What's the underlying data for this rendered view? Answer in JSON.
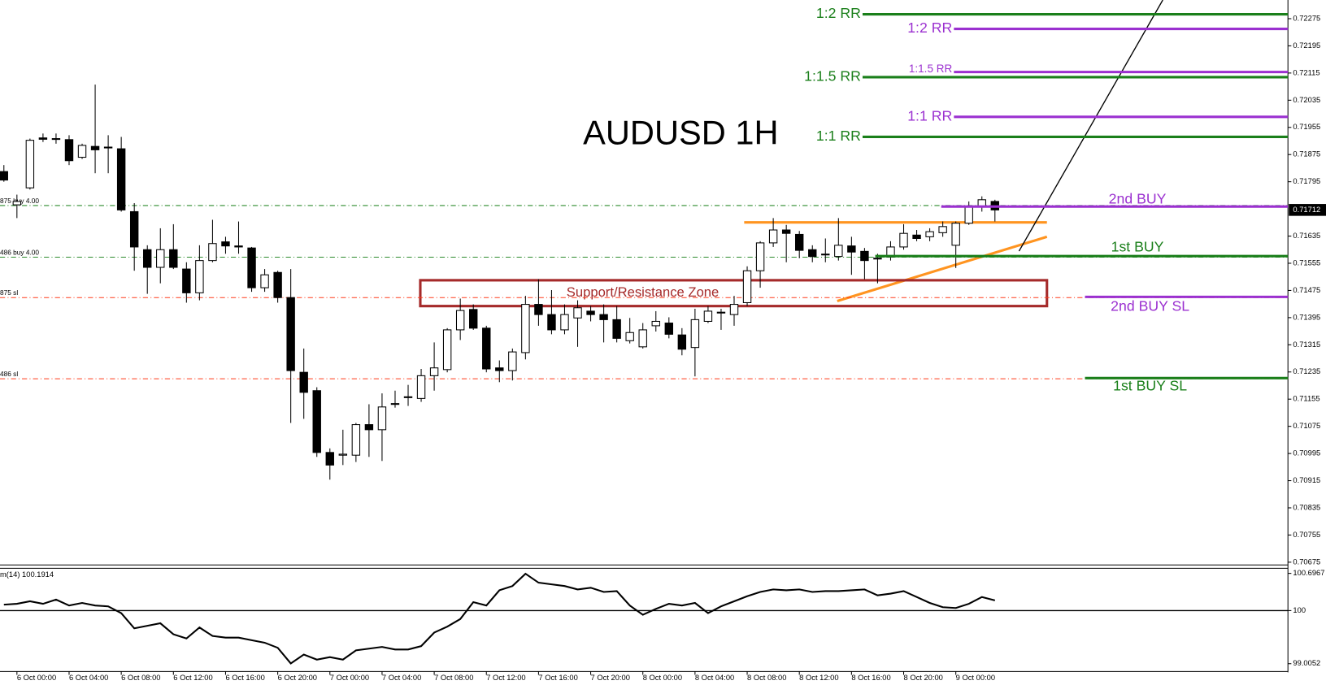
{
  "chart_data": [
    {
      "type": "candlestick",
      "title": "AUDUSD 1H",
      "categories": [
        null,
        "6 Oct 00:00",
        null,
        null,
        null,
        "6 Oct 04:00",
        null,
        null,
        null,
        "6 Oct 08:00",
        null,
        null,
        null,
        "6 Oct 12:00",
        null,
        null,
        null,
        "6 Oct 16:00",
        null,
        null,
        null,
        "6 Oct 20:00",
        null,
        null,
        null,
        "7 Oct 00:00",
        null,
        null,
        null,
        "7 Oct 04:00",
        null,
        null,
        null,
        "7 Oct 08:00",
        null,
        null,
        null,
        "7 Oct 12:00",
        null,
        null,
        null,
        "7 Oct 16:00",
        null,
        null,
        null,
        "7 Oct 20:00",
        null,
        null,
        null,
        "8 Oct 00:00",
        null,
        null,
        null,
        "8 Oct 04:00",
        null,
        null,
        null,
        "8 Oct 08:00",
        null,
        null,
        null,
        "8 Oct 12:00",
        null,
        null,
        null,
        "8 Oct 16:00",
        null,
        null,
        null,
        "8 Oct 20:00",
        null,
        null,
        null,
        "9 Oct 00:00",
        null,
        null,
        null
      ],
      "open": [
        0.71825,
        0.71727,
        0.71777,
        0.71924,
        0.71922,
        0.71919,
        0.71867,
        0.71899,
        0.71897,
        0.71892,
        0.71707,
        0.71595,
        0.71543,
        0.71595,
        0.71538,
        0.71468,
        0.71563,
        0.71618,
        0.71606,
        0.716,
        0.71483,
        0.71528,
        0.71454,
        0.71234,
        0.7118,
        0.70998,
        0.7099,
        0.7099,
        0.7108,
        0.71065,
        0.7114,
        0.7116,
        0.71157,
        0.71224,
        0.71242,
        0.71359,
        0.71419,
        0.71364,
        0.71247,
        0.71239,
        0.71292,
        0.71434,
        0.71404,
        0.71359,
        0.71394,
        0.71414,
        0.71404,
        0.71389,
        0.71327,
        0.71309,
        0.71371,
        0.71379,
        0.71344,
        0.71307,
        0.71384,
        0.71409,
        0.71404,
        0.71439,
        0.71533,
        0.71615,
        0.71653,
        0.7164,
        0.71595,
        0.7158,
        0.71575,
        0.71606,
        0.7159,
        0.71568,
        0.71573,
        0.71603,
        0.71638,
        0.71633,
        0.71645,
        0.71608,
        0.71673,
        0.71722,
        0.71737
      ],
      "high": [
        0.71844,
        0.71757,
        0.71922,
        0.71937,
        0.71937,
        0.71932,
        0.71907,
        0.72081,
        0.71932,
        0.71927,
        0.71732,
        0.71608,
        0.71658,
        0.7167,
        0.71558,
        0.71608,
        0.71683,
        0.71633,
        0.71678,
        0.71603,
        0.71538,
        0.71533,
        0.71538,
        0.71304,
        0.7119,
        0.7101,
        0.71065,
        0.71085,
        0.7114,
        0.71172,
        0.7118,
        0.71197,
        0.71244,
        0.71322,
        0.71364,
        0.71451,
        0.71434,
        0.71371,
        0.71269,
        0.71304,
        0.71459,
        0.71508,
        0.71476,
        0.71434,
        0.71446,
        0.71429,
        0.71434,
        0.71429,
        0.71394,
        0.71379,
        0.71414,
        0.71396,
        0.71364,
        0.71421,
        0.71429,
        0.71421,
        0.71459,
        0.71546,
        0.7162,
        0.71688,
        0.71668,
        0.7165,
        0.71608,
        0.71628,
        0.71688,
        0.71633,
        0.716,
        0.71583,
        0.7162,
        0.7167,
        0.71653,
        0.71658,
        0.71678,
        0.71678,
        0.71737,
        0.71752,
        0.71742
      ],
      "low": [
        0.71795,
        0.71688,
        0.71772,
        0.71912,
        0.71907,
        0.71844,
        0.71862,
        0.7182,
        0.7182,
        0.71707,
        0.71533,
        0.71465,
        0.71496,
        0.71538,
        0.71439,
        0.71446,
        0.71558,
        0.71583,
        0.71583,
        0.71471,
        0.71471,
        0.71439,
        0.71085,
        0.71097,
        0.70985,
        0.70918,
        0.70961,
        0.7097,
        0.70985,
        0.70973,
        0.7113,
        0.71135,
        0.71147,
        0.7118,
        0.71234,
        0.71329,
        0.71359,
        0.71234,
        0.71205,
        0.7121,
        0.71272,
        0.71371,
        0.71346,
        0.71346,
        0.71309,
        0.71384,
        0.71322,
        0.71322,
        0.71319,
        0.71304,
        0.71354,
        0.71334,
        0.71284,
        0.71222,
        0.71379,
        0.71359,
        0.71371,
        0.71429,
        0.71483,
        0.71603,
        0.71558,
        0.7157,
        0.71558,
        0.71558,
        0.71563,
        0.71521,
        0.71508,
        0.71496,
        0.71563,
        0.71595,
        0.7162,
        0.7162,
        0.71633,
        0.71541,
        0.71668,
        0.71707,
        0.71678
      ],
      "close": [
        0.718,
        0.71737,
        0.71917,
        0.7192,
        0.7192,
        0.71857,
        0.71902,
        0.71889,
        0.71895,
        0.71712,
        0.71603,
        0.71543,
        0.71595,
        0.71543,
        0.71468,
        0.71563,
        0.71613,
        0.71606,
        0.71603,
        0.71483,
        0.71521,
        0.71454,
        0.71239,
        0.71175,
        0.70998,
        0.70961,
        0.70993,
        0.7108,
        0.71065,
        0.71132,
        0.71142,
        0.71162,
        0.71224,
        0.71247,
        0.71359,
        0.71416,
        0.71364,
        0.71244,
        0.71239,
        0.71294,
        0.71434,
        0.71404,
        0.71359,
        0.71404,
        0.71424,
        0.71404,
        0.71389,
        0.71334,
        0.71351,
        0.71359,
        0.71384,
        0.71346,
        0.71302,
        0.71389,
        0.71414,
        0.71411,
        0.71434,
        0.71533,
        0.71615,
        0.71653,
        0.71643,
        0.71593,
        0.71575,
        0.71582,
        0.71608,
        0.71588,
        0.71563,
        0.7157,
        0.71603,
        0.71643,
        0.71628,
        0.71648,
        0.71663,
        0.71673,
        0.71722,
        0.71742,
        0.71712
      ],
      "ylim": [
        0.70667,
        0.7233
      ],
      "yticks": [
        0.72275,
        0.72195,
        0.72115,
        0.72035,
        0.71955,
        0.71875,
        0.71795,
        0.71635,
        0.71555,
        0.71475,
        0.71395,
        0.71315,
        0.71235,
        0.71155,
        0.71075,
        0.70995,
        0.70915,
        0.70835,
        0.70755,
        0.70675
      ],
      "current_price": 0.71712,
      "levels": [
        {
          "label": "1:2 RR",
          "value": 0.72288,
          "color": "#1a7f1a"
        },
        {
          "label": "1:2 RR",
          "value": 0.72245,
          "color": "#9b30d0"
        },
        {
          "label": "1:1.5 RR",
          "value": 0.72118,
          "color": "#9b30d0"
        },
        {
          "label": "1:1.5 RR",
          "value": 0.72103,
          "color": "#1a7f1a"
        },
        {
          "label": "1:1 RR",
          "value": 0.71986,
          "color": "#9b30d0"
        },
        {
          "label": "1:1 RR",
          "value": 0.71927,
          "color": "#1a7f1a"
        },
        {
          "label": "2nd BUY",
          "value": 0.71722,
          "color": "#9b30d0"
        },
        {
          "label": "1st BUY",
          "value": 0.71576,
          "color": "#1a7f1a"
        },
        {
          "label": "2nd BUY SL",
          "value": 0.71456,
          "color": "#9b30d0"
        },
        {
          "label": "1st BUY SL",
          "value": 0.71217,
          "color": "#1a7f1a"
        }
      ],
      "orders": [
        {
          "label": "875 buy 4.00",
          "value": 0.71725,
          "color": "#2e8b2e"
        },
        {
          "label": "486 buy 4.00",
          "value": 0.71573,
          "color": "#2e8b2e"
        },
        {
          "label": "875 sl",
          "value": 0.71454,
          "color": "#ff3b1a"
        },
        {
          "label": "486 sl",
          "value": 0.71215,
          "color": "#ff3b1a"
        }
      ],
      "zone": {
        "label": "Support/Resistance Zone",
        "top": 0.71505,
        "bottom": 0.71429,
        "color": "#a52a2a"
      }
    },
    {
      "type": "line",
      "label": "m(14) 100.1914",
      "color": "#000000",
      "values": [
        100.111,
        100.127,
        100.174,
        100.127,
        100.206,
        100.095,
        100.143,
        100.095,
        100.079,
        99.952,
        99.667,
        99.715,
        99.762,
        99.556,
        99.477,
        99.683,
        99.525,
        99.493,
        99.493,
        99.445,
        99.398,
        99.303,
        99.01,
        99.176,
        99.081,
        99.128,
        99.081,
        99.255,
        99.287,
        99.319,
        99.271,
        99.271,
        99.334,
        99.588,
        99.699,
        99.842,
        100.158,
        100.095,
        100.38,
        100.46,
        100.69,
        100.523,
        100.491,
        100.46,
        100.396,
        100.428,
        100.349,
        100.365,
        100.095,
        99.921,
        100.032,
        100.127,
        100.095,
        100.143,
        99.952,
        100.079,
        100.174,
        100.269,
        100.349,
        100.396,
        100.38,
        100.396,
        100.349,
        100.365,
        100.365,
        100.38,
        100.396,
        100.285,
        100.317,
        100.365,
        100.254,
        100.143,
        100.063,
        100.048,
        100.127,
        100.254,
        100.1914
      ],
      "ylim": [
        98.875,
        100.792
      ],
      "yticks": [
        100.6967,
        100,
        99.0052
      ],
      "level": 100
    }
  ]
}
